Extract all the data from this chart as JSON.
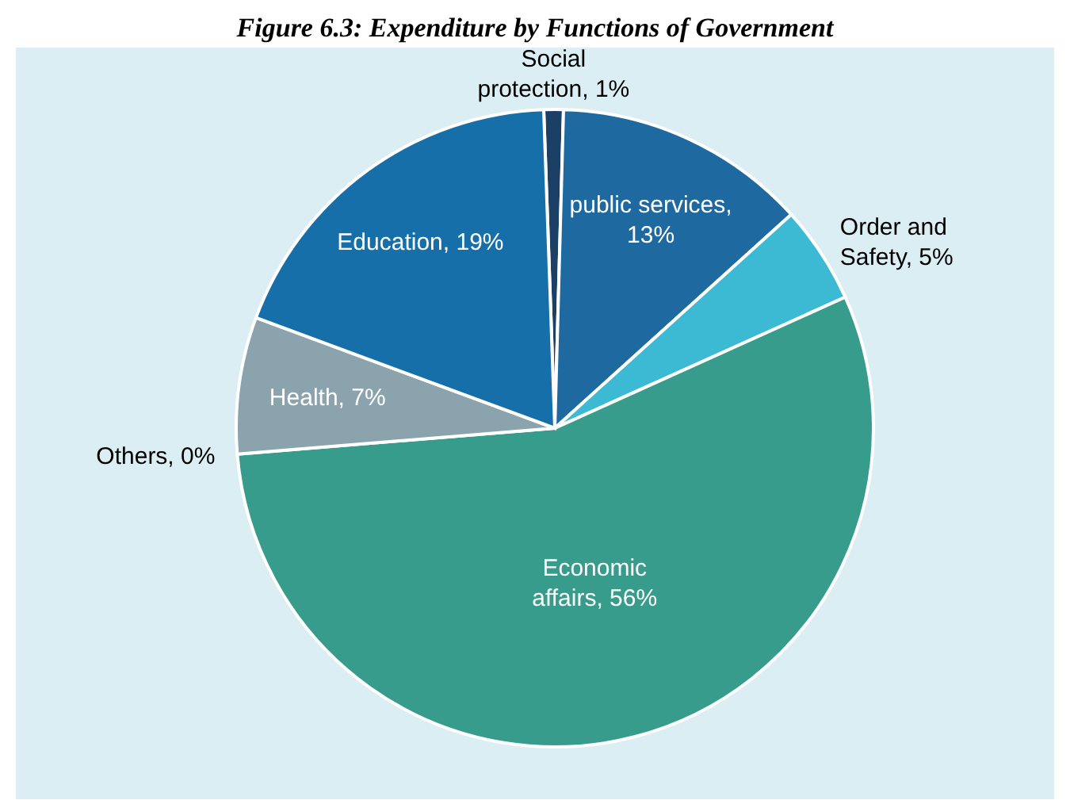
{
  "chart_data": {
    "type": "pie",
    "title": "Figure 6.3: Expenditure by Functions of Government",
    "categories": [
      "Social protection, 1%",
      "public services, 13%",
      "Order and Safety, 5%",
      "Economic affairs, 56%",
      "Others, 0%",
      "Health, 7%",
      "Education, 19%"
    ],
    "values": [
      1,
      13,
      5,
      56,
      0,
      7,
      19
    ],
    "colors": [
      "#1c3f66",
      "#1f69a1",
      "#3dbad3",
      "#379c8b",
      "#a9b8bd",
      "#8aa3ad",
      "#176fa9"
    ],
    "legend": false
  }
}
